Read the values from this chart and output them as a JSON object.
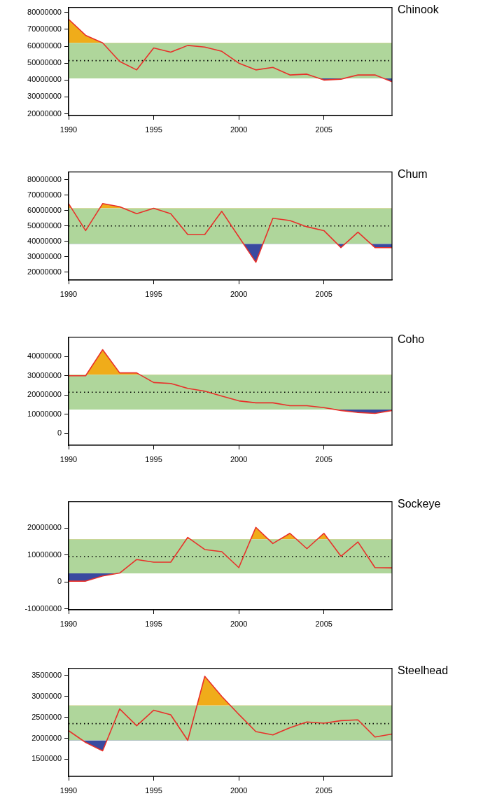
{
  "chart_data": [
    {
      "type": "line",
      "title": "Chinook",
      "x": [
        1990,
        1991,
        1992,
        1993,
        1994,
        1995,
        1996,
        1997,
        1998,
        1999,
        2000,
        2001,
        2002,
        2003,
        2004,
        2005,
        2006,
        2007,
        2008,
        2009
      ],
      "series": [
        {
          "color": "#e8302a",
          "values": [
            76000000,
            66500000,
            62000000,
            51000000,
            46000000,
            59000000,
            56500000,
            60500000,
            59500000,
            57000000,
            50000000,
            46000000,
            47500000,
            43000000,
            43500000,
            40000000,
            40500000,
            43000000,
            43000000,
            39000000
          ]
        }
      ],
      "xlim": [
        1990,
        2009
      ],
      "xticks": [
        1990,
        1995,
        2000,
        2005
      ],
      "ylim": [
        19000000,
        83000000
      ],
      "yticks": [
        20000000,
        30000000,
        40000000,
        50000000,
        60000000,
        70000000,
        80000000
      ],
      "bands": [
        {
          "axis": "y",
          "from": 41000000,
          "to": 62000000,
          "color": "#afd69b"
        }
      ],
      "ref_lines": [
        {
          "axis": "y",
          "value": 51500000,
          "color": "#000000",
          "line_style": "dotted"
        }
      ],
      "grid": false,
      "legend": false,
      "marker": "none"
    },
    {
      "type": "line",
      "title": "Chum",
      "x": [
        1990,
        1991,
        1992,
        1993,
        1994,
        1995,
        1996,
        1997,
        1998,
        1999,
        2000,
        2001,
        2002,
        2003,
        2004,
        2005,
        2006,
        2007,
        2008,
        2009
      ],
      "series": [
        {
          "color": "#e8302a",
          "values": [
            64500000,
            47000000,
            64500000,
            62500000,
            58000000,
            61500000,
            58000000,
            44500000,
            44500000,
            59500000,
            43000000,
            26500000,
            55000000,
            53500000,
            49500000,
            47000000,
            36000000,
            46000000,
            36000000,
            36000000
          ]
        }
      ],
      "xlim": [
        1990,
        2009
      ],
      "xticks": [
        1990,
        1995,
        2000,
        2005
      ],
      "ylim": [
        15000000,
        85000000
      ],
      "yticks": [
        20000000,
        30000000,
        40000000,
        50000000,
        60000000,
        70000000,
        80000000
      ],
      "bands": [
        {
          "axis": "y",
          "from": 38500000,
          "to": 61500000,
          "color": "#afd69b"
        }
      ],
      "ref_lines": [
        {
          "axis": "y",
          "value": 50000000,
          "color": "#000000",
          "line_style": "dotted"
        }
      ],
      "grid": false,
      "legend": false,
      "marker": "none"
    },
    {
      "type": "line",
      "title": "Coho",
      "x": [
        1990,
        1991,
        1992,
        1993,
        1994,
        1995,
        1996,
        1997,
        1998,
        1999,
        2000,
        2001,
        2002,
        2003,
        2004,
        2005,
        2006,
        2007,
        2008,
        2009
      ],
      "series": [
        {
          "color": "#e8302a",
          "values": [
            30000000,
            30000000,
            43500000,
            31500000,
            31500000,
            26500000,
            26000000,
            23500000,
            22000000,
            19500000,
            17000000,
            16000000,
            16000000,
            14500000,
            14500000,
            13500000,
            12000000,
            11000000,
            10500000,
            12000000
          ]
        }
      ],
      "xlim": [
        1990,
        2009
      ],
      "xticks": [
        1990,
        1995,
        2000,
        2005
      ],
      "ylim": [
        -6000000,
        50000000
      ],
      "yticks": [
        0,
        10000000,
        20000000,
        30000000,
        40000000
      ],
      "bands": [
        {
          "axis": "y",
          "from": 12500000,
          "to": 30500000,
          "color": "#afd69b"
        }
      ],
      "ref_lines": [
        {
          "axis": "y",
          "value": 21500000,
          "color": "#000000",
          "line_style": "dotted"
        }
      ],
      "grid": false,
      "legend": false,
      "marker": "none"
    },
    {
      "type": "line",
      "title": "Sockeye",
      "x": [
        1990,
        1991,
        1992,
        1993,
        1994,
        1995,
        1996,
        1997,
        1998,
        1999,
        2000,
        2001,
        2002,
        2003,
        2004,
        2005,
        2006,
        2007,
        2008,
        2009
      ],
      "series": [
        {
          "color": "#e8302a",
          "values": [
            300000,
            300000,
            2200000,
            3300000,
            8300000,
            7300000,
            7300000,
            16500000,
            12000000,
            11200000,
            5300000,
            20200000,
            14200000,
            18000000,
            12300000,
            18000000,
            9500000,
            14800000,
            5300000,
            5200000
          ]
        }
      ],
      "xlim": [
        1990,
        2009
      ],
      "xticks": [
        1990,
        1995,
        2000,
        2005
      ],
      "ylim": [
        -10300000,
        29700000
      ],
      "yticks": [
        -10000000,
        0,
        10000000,
        20000000
      ],
      "bands": [
        {
          "axis": "y",
          "from": 3200000,
          "to": 15800000,
          "color": "#afd69b"
        }
      ],
      "ref_lines": [
        {
          "axis": "y",
          "value": 9400000,
          "color": "#000000",
          "line_style": "dotted"
        }
      ],
      "grid": false,
      "legend": false,
      "marker": "none"
    },
    {
      "type": "line",
      "title": "Steelhead",
      "x": [
        1990,
        1991,
        1992,
        1993,
        1994,
        1995,
        1996,
        1997,
        1998,
        1999,
        2000,
        2001,
        2002,
        2003,
        2004,
        2005,
        2006,
        2007,
        2008,
        2009
      ],
      "series": [
        {
          "color": "#e8302a",
          "values": [
            2180000,
            1900000,
            1700000,
            2700000,
            2300000,
            2670000,
            2560000,
            1950000,
            3480000,
            3000000,
            2570000,
            2160000,
            2080000,
            2250000,
            2390000,
            2360000,
            2420000,
            2440000,
            2030000,
            2100000
          ]
        }
      ],
      "xlim": [
        1990,
        2009
      ],
      "xticks": [
        1990,
        1995,
        2000,
        2005
      ],
      "ylim": [
        1090000,
        3670000
      ],
      "yticks": [
        1500000,
        2000000,
        2500000,
        3000000,
        3500000
      ],
      "bands": [
        {
          "axis": "y",
          "from": 1950000,
          "to": 2780000,
          "color": "#afd69b"
        }
      ],
      "ref_lines": [
        {
          "axis": "y",
          "value": 2350000,
          "color": "#000000",
          "line_style": "dotted"
        }
      ],
      "grid": false,
      "legend": false,
      "marker": "none"
    }
  ]
}
